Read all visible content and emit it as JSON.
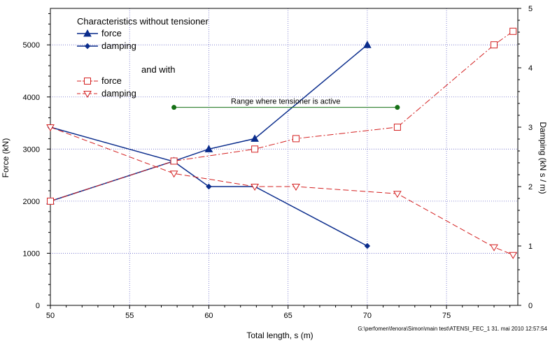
{
  "chart_data": {
    "type": "line",
    "xlabel": "Total length, s  (m)",
    "ylabel_left": "Force (kN)",
    "ylabel_right": "Damping (kN s / m)",
    "xlim": [
      50,
      79.5
    ],
    "ylim_left": [
      0,
      5700
    ],
    "ylim_right": [
      0,
      5
    ],
    "x_ticks": [
      50,
      55,
      60,
      65,
      70,
      75
    ],
    "y_ticks_left": [
      0,
      1000,
      2000,
      3000,
      4000,
      5000
    ],
    "y_ticks_right": [
      0,
      1,
      2,
      3,
      4,
      5
    ],
    "grid": true,
    "legend": {
      "heading": "Characteristics without tensioner",
      "with_heading": "and with"
    },
    "series": [
      {
        "name": "force",
        "group": "without",
        "axis": "left",
        "color": "#0a2c8c",
        "marker": "filled-triangle",
        "style": "solid",
        "x": [
          50,
          57.8,
          60,
          62.9,
          70
        ],
        "y": [
          2000,
          2770,
          3000,
          3200,
          5000
        ]
      },
      {
        "name": "damping",
        "group": "without",
        "axis": "right",
        "color": "#0a2c8c",
        "marker": "filled-diamond",
        "style": "solid",
        "x": [
          50,
          57.8,
          60,
          62.9,
          70
        ],
        "y": [
          3.0,
          2.42,
          2.0,
          2.0,
          1.0
        ]
      },
      {
        "name": "force",
        "group": "with",
        "axis": "left",
        "color": "#d42020",
        "marker": "open-square",
        "style": "dash-dot",
        "x": [
          50,
          57.8,
          62.9,
          65.5,
          71.9,
          78,
          79.2
        ],
        "y": [
          2000,
          2770,
          3000,
          3200,
          3420,
          5000,
          5260
        ]
      },
      {
        "name": "damping",
        "group": "with",
        "axis": "right",
        "color": "#d42020",
        "marker": "open-triangle-down",
        "style": "dashed",
        "x": [
          50,
          57.8,
          62.9,
          65.5,
          71.9,
          78,
          79.2
        ],
        "y": [
          3.0,
          2.22,
          2.0,
          2.0,
          1.88,
          0.98,
          0.85
        ]
      }
    ],
    "annotations": [
      {
        "text": "Range where tensioner is active",
        "x_start": 57.8,
        "x_end": 71.9,
        "y": 3800,
        "axis": "left",
        "color": "#157015"
      }
    ]
  },
  "footer": "G:\\perfomen\\fenora\\Simon\\main test\\ATENSI_FEC_1   31. mai 2010  12:57:54"
}
